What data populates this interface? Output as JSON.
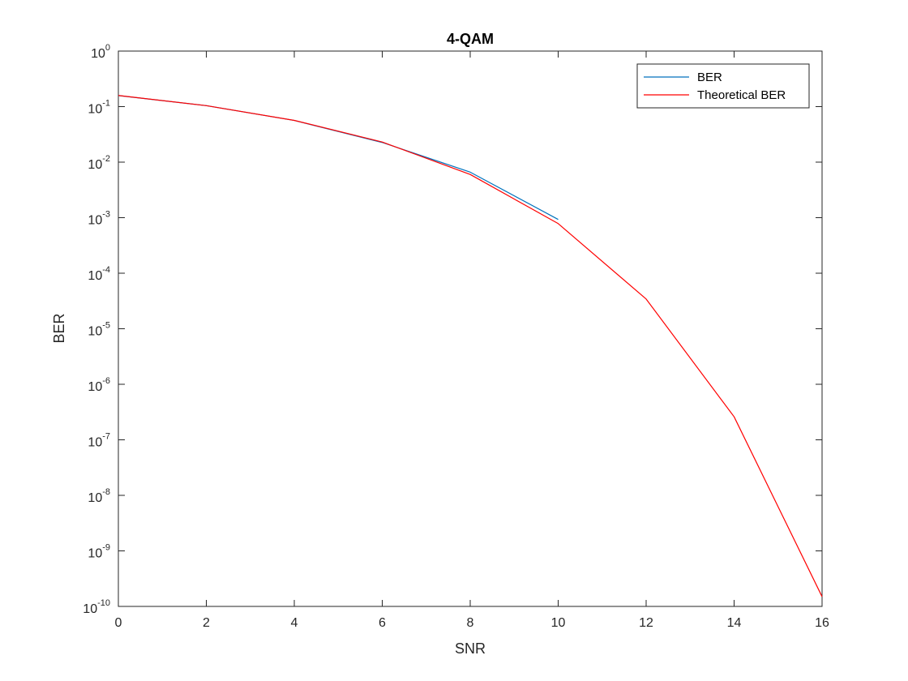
{
  "chart_data": {
    "type": "line",
    "title": "4-QAM",
    "xlabel": "SNR",
    "ylabel": "BER",
    "xlim": [
      0,
      16
    ],
    "ylim": [
      1e-10,
      1
    ],
    "yscale": "log",
    "grid": false,
    "legend_position": "top-right",
    "x_ticks": [
      "0",
      "2",
      "4",
      "6",
      "8",
      "10",
      "12",
      "14",
      "16"
    ],
    "y_ticks": [
      {
        "base": "10",
        "exp": "-10"
      },
      {
        "base": "10",
        "exp": "-9"
      },
      {
        "base": "10",
        "exp": "-8"
      },
      {
        "base": "10",
        "exp": "-7"
      },
      {
        "base": "10",
        "exp": "-6"
      },
      {
        "base": "10",
        "exp": "-5"
      },
      {
        "base": "10",
        "exp": "-4"
      },
      {
        "base": "10",
        "exp": "-3"
      },
      {
        "base": "10",
        "exp": "-2"
      },
      {
        "base": "10",
        "exp": "-1"
      },
      {
        "base": "10",
        "exp": "0"
      }
    ],
    "series": [
      {
        "name": "BER",
        "color": "#0072BD",
        "x": [
          0,
          2,
          4,
          6,
          8,
          10
        ],
        "y": [
          0.158,
          0.104,
          0.0563,
          0.0226,
          0.0066,
          0.00093
        ]
      },
      {
        "name": "Theoretical BER",
        "color": "#FF0000",
        "x": [
          0,
          2,
          4,
          6,
          8,
          10,
          12,
          14,
          16
        ],
        "y": [
          0.1587,
          0.104,
          0.0565,
          0.023,
          0.006,
          0.000783,
          3.43e-05,
          2.6e-07,
          1.5e-10
        ]
      }
    ]
  }
}
